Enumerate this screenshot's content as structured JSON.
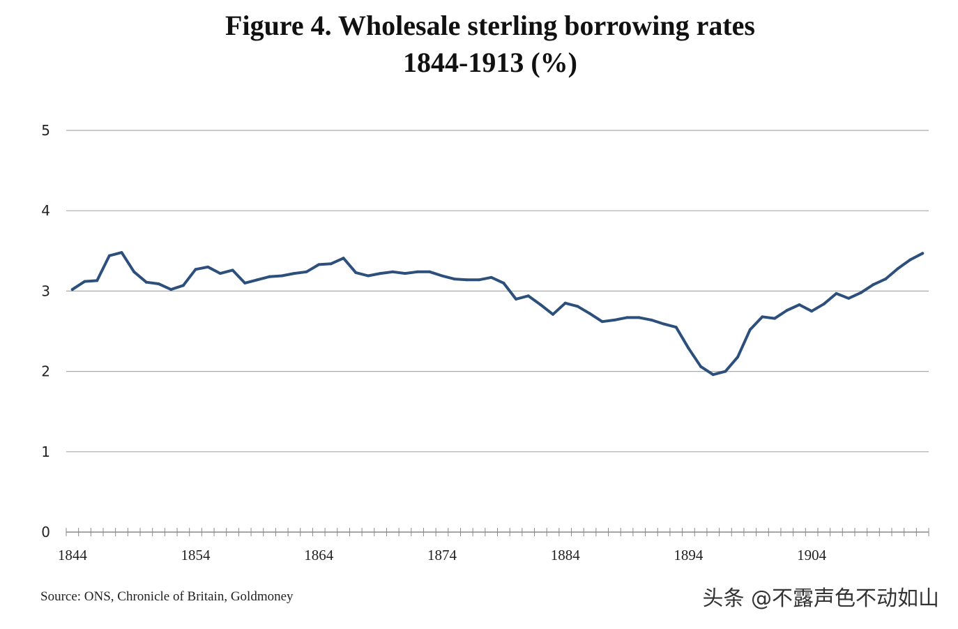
{
  "chart_data": {
    "type": "line",
    "title_lines": [
      "Figure 4. Wholesale sterling borrowing rates",
      "1844-1913  (%)"
    ],
    "xlabel": "",
    "ylabel": "",
    "ylim": [
      0,
      5
    ],
    "y_ticks": [
      "0",
      "1",
      "2",
      "3",
      "4",
      "5"
    ],
    "x_ticks": [
      "1844",
      "1854",
      "1864",
      "1874",
      "1884",
      "1894",
      "1904"
    ],
    "x_range": [
      1843.5,
      1913.5
    ],
    "grid": true,
    "line_color": "#2c4f7c",
    "series": [
      {
        "name": "Wholesale sterling borrowing rate (%)",
        "x": [
          1844,
          1845,
          1846,
          1847,
          1848,
          1849,
          1850,
          1851,
          1852,
          1853,
          1854,
          1855,
          1856,
          1857,
          1858,
          1859,
          1860,
          1861,
          1862,
          1863,
          1864,
          1865,
          1866,
          1867,
          1868,
          1869,
          1870,
          1871,
          1872,
          1873,
          1874,
          1875,
          1876,
          1877,
          1878,
          1879,
          1880,
          1881,
          1882,
          1883,
          1884,
          1885,
          1886,
          1887,
          1888,
          1889,
          1890,
          1891,
          1892,
          1893,
          1894,
          1895,
          1896,
          1897,
          1898,
          1899,
          1900,
          1901,
          1902,
          1903,
          1904,
          1905,
          1906,
          1907,
          1908,
          1909,
          1910,
          1911,
          1912,
          1913
        ],
        "values": [
          3.02,
          3.12,
          3.13,
          3.44,
          3.48,
          3.24,
          3.11,
          3.09,
          3.02,
          3.07,
          3.27,
          3.3,
          3.22,
          3.26,
          3.1,
          3.14,
          3.18,
          3.19,
          3.22,
          3.24,
          3.33,
          3.34,
          3.41,
          3.23,
          3.19,
          3.22,
          3.24,
          3.22,
          3.24,
          3.24,
          3.19,
          3.15,
          3.14,
          3.14,
          3.17,
          3.1,
          2.9,
          2.94,
          2.83,
          2.71,
          2.85,
          2.81,
          2.72,
          2.62,
          2.64,
          2.67,
          2.67,
          2.64,
          2.59,
          2.55,
          2.29,
          2.06,
          1.96,
          2.0,
          2.18,
          2.52,
          2.68,
          2.66,
          2.76,
          2.83,
          2.75,
          2.84,
          2.97,
          2.91,
          2.98,
          3.08,
          3.15,
          3.28,
          3.39,
          3.47
        ]
      }
    ]
  },
  "footer": {
    "source": "Source: ONS, Chronicle of Britain, Goldmoney",
    "watermark": "头条 @不露声色不动如山"
  }
}
